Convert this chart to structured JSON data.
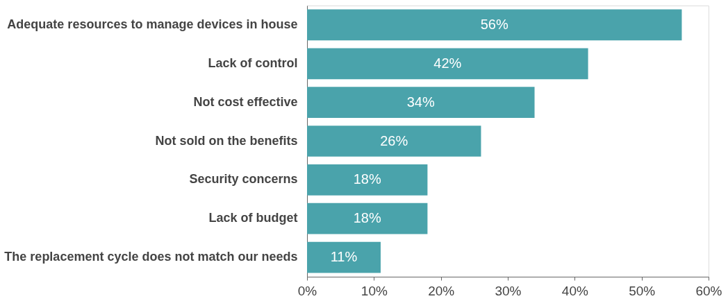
{
  "chart_data": {
    "type": "bar",
    "orientation": "horizontal",
    "categories": [
      "Adequate resources to manage devices in house",
      "Lack of control",
      "Not cost effective",
      "Not sold on the benefits",
      "Security concerns",
      "Lack of budget",
      "The replacement cycle does not match our needs"
    ],
    "values": [
      56,
      42,
      34,
      26,
      18,
      18,
      11
    ],
    "value_labels": [
      "56%",
      "42%",
      "34%",
      "26%",
      "18%",
      "18%",
      "11%"
    ],
    "color": "#4aa3ab",
    "xlim": [
      0,
      60
    ],
    "xticks": [
      {
        "value": 0,
        "label": "0%"
      },
      {
        "value": 10,
        "label": "10%"
      },
      {
        "value": 20,
        "label": "20%"
      },
      {
        "value": 30,
        "label": "30%"
      },
      {
        "value": 40,
        "label": "40%"
      },
      {
        "value": 50,
        "label": "50%"
      },
      {
        "value": 60,
        "label": "60%"
      }
    ],
    "grid": false
  }
}
